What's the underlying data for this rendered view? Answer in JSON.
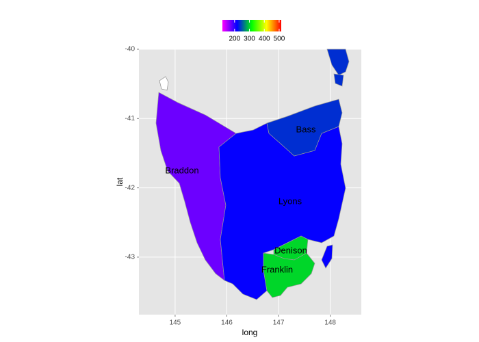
{
  "chart_data": {
    "type": "map",
    "x_label": "long",
    "y_label": "lat",
    "xlim": [
      144.3,
      148.6
    ],
    "ylim": [
      -43.83,
      -40
    ],
    "xticks": [
      145,
      146,
      147,
      148
    ],
    "yticks": [
      -40,
      -41,
      -42,
      -43
    ],
    "grid": true,
    "regions": [
      {
        "name": "Bass",
        "value": 235
      },
      {
        "name": "Braddon",
        "value": 175
      },
      {
        "name": "Denison",
        "value": 300
      },
      {
        "name": "Franklin",
        "value": 300
      },
      {
        "name": "Lyons",
        "value": 215
      }
    ],
    "colorscale": {
      "limits": [
        118,
        514
      ],
      "ticks": [
        200,
        300,
        400,
        500
      ],
      "colors": [
        "#ff00ff",
        "#0000ff",
        "#00ff00",
        "#ffff00",
        "#ff0000"
      ]
    }
  }
}
